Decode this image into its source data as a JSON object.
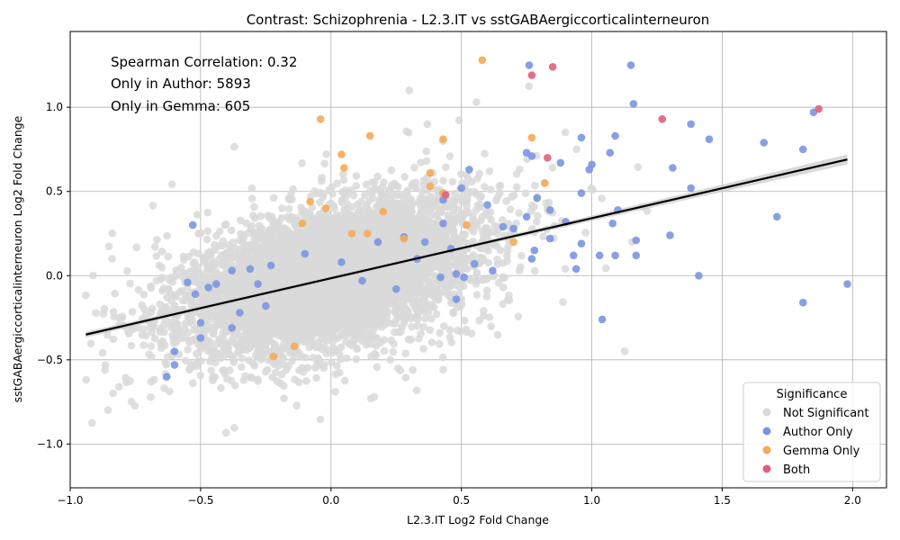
{
  "chart_data": {
    "type": "scatter",
    "title": "Contrast: Schizophrenia - L2.3.IT vs sstGABAergiccorticalinterneuron",
    "xlabel": "L2.3.IT Log2 Fold Change",
    "ylabel": "sstGABAergiccorticalinterneuron Log2 Fold Change",
    "xlim": [
      -1.0,
      2.13
    ],
    "ylim": [
      -1.26,
      1.45
    ],
    "xticks": [
      -1.0,
      -0.5,
      0.0,
      0.5,
      1.0,
      1.5,
      2.0
    ],
    "xtick_labels": [
      "−1.0",
      "−0.5",
      "0.0",
      "0.5",
      "1.0",
      "1.5",
      "2.0"
    ],
    "yticks": [
      -1.0,
      -0.5,
      0.0,
      0.5,
      1.0
    ],
    "ytick_labels": [
      "−1.0",
      "−0.5",
      "0.0",
      "0.5",
      "1.0"
    ],
    "grid": true,
    "annotations": [
      "Spearman Correlation: 0.32",
      "Only in Author: 5893",
      "Only in Gemma: 605"
    ],
    "legend": {
      "title": "Significance",
      "location": "lower-right",
      "entries": [
        {
          "label": "Not Significant",
          "color": "#d9d9d9"
        },
        {
          "label": "Author Only",
          "color": "#7b96e0"
        },
        {
          "label": "Gemma Only",
          "color": "#f5aa55"
        },
        {
          "label": "Both",
          "color": "#e0607a"
        }
      ]
    },
    "regression": {
      "x": [
        -0.94,
        1.98
      ],
      "y": [
        -0.35,
        0.69
      ],
      "color": "#000000",
      "band_color": "#cccccc"
    },
    "series": [
      {
        "name": "Author Only",
        "color": "#7b96e0",
        "points": [
          [
            0.76,
            1.25
          ],
          [
            1.15,
            1.25
          ],
          [
            1.16,
            1.02
          ],
          [
            0.75,
            0.73
          ],
          [
            0.77,
            0.71
          ],
          [
            0.96,
            0.82
          ],
          [
            1.09,
            0.83
          ],
          [
            1.38,
            0.9
          ],
          [
            1.45,
            0.81
          ],
          [
            1.66,
            0.79
          ],
          [
            1.81,
            0.75
          ],
          [
            1.85,
            0.97
          ],
          [
            0.88,
            0.67
          ],
          [
            0.99,
            0.63
          ],
          [
            1.0,
            0.66
          ],
          [
            1.07,
            0.73
          ],
          [
            1.31,
            0.64
          ],
          [
            1.38,
            0.52
          ],
          [
            0.96,
            0.49
          ],
          [
            0.79,
            0.46
          ],
          [
            0.84,
            0.39
          ],
          [
            0.75,
            0.35
          ],
          [
            0.9,
            0.32
          ],
          [
            1.1,
            0.39
          ],
          [
            1.71,
            0.35
          ],
          [
            1.08,
            0.31
          ],
          [
            0.84,
            0.22
          ],
          [
            0.96,
            0.19
          ],
          [
            1.17,
            0.21
          ],
          [
            1.3,
            0.24
          ],
          [
            0.78,
            0.15
          ],
          [
            0.77,
            0.1
          ],
          [
            0.93,
            0.12
          ],
          [
            1.03,
            0.12
          ],
          [
            1.09,
            0.12
          ],
          [
            1.17,
            0.12
          ],
          [
            0.94,
            0.04
          ],
          [
            1.41,
            0.0
          ],
          [
            1.98,
            -0.05
          ],
          [
            1.81,
            -0.16
          ],
          [
            1.04,
            -0.26
          ],
          [
            0.53,
            0.63
          ],
          [
            0.5,
            0.52
          ],
          [
            0.43,
            0.45
          ],
          [
            0.66,
            0.29
          ],
          [
            0.46,
            0.16
          ],
          [
            0.55,
            0.07
          ],
          [
            0.62,
            0.03
          ],
          [
            0.48,
            0.01
          ],
          [
            0.51,
            -0.01
          ],
          [
            0.42,
            -0.01
          ],
          [
            0.48,
            -0.14
          ],
          [
            0.28,
            0.23
          ],
          [
            0.18,
            0.2
          ],
          [
            0.04,
            0.08
          ],
          [
            -0.1,
            0.13
          ],
          [
            -0.23,
            0.06
          ],
          [
            -0.31,
            0.04
          ],
          [
            -0.38,
            0.03
          ],
          [
            -0.47,
            -0.07
          ],
          [
            -0.52,
            -0.11
          ],
          [
            -0.55,
            -0.04
          ],
          [
            -0.28,
            -0.05
          ],
          [
            -0.25,
            -0.18
          ],
          [
            -0.35,
            -0.22
          ],
          [
            -0.5,
            -0.28
          ],
          [
            -0.38,
            -0.31
          ],
          [
            -0.5,
            -0.37
          ],
          [
            -0.6,
            -0.45
          ],
          [
            -0.6,
            -0.53
          ],
          [
            -0.63,
            -0.6
          ],
          [
            -0.53,
            0.3
          ],
          [
            -0.44,
            -0.05
          ],
          [
            0.12,
            -0.03
          ],
          [
            0.25,
            -0.08
          ],
          [
            0.33,
            0.1
          ],
          [
            0.36,
            0.2
          ],
          [
            0.43,
            0.31
          ],
          [
            0.6,
            0.42
          ],
          [
            0.7,
            0.28
          ]
        ]
      },
      {
        "name": "Gemma Only",
        "color": "#f5aa55",
        "points": [
          [
            0.58,
            1.28
          ],
          [
            -0.04,
            0.93
          ],
          [
            0.15,
            0.83
          ],
          [
            0.43,
            0.81
          ],
          [
            0.77,
            0.82
          ],
          [
            0.04,
            0.72
          ],
          [
            0.05,
            0.64
          ],
          [
            0.82,
            0.55
          ],
          [
            0.38,
            0.61
          ],
          [
            0.38,
            0.53
          ],
          [
            0.43,
            0.49
          ],
          [
            -0.08,
            0.44
          ],
          [
            -0.02,
            0.4
          ],
          [
            0.2,
            0.38
          ],
          [
            -0.11,
            0.31
          ],
          [
            0.08,
            0.25
          ],
          [
            0.14,
            0.25
          ],
          [
            0.28,
            0.22
          ],
          [
            -0.14,
            -0.42
          ],
          [
            -0.22,
            -0.48
          ],
          [
            0.52,
            0.3
          ],
          [
            0.7,
            0.2
          ]
        ]
      },
      {
        "name": "Both",
        "color": "#e0607a",
        "points": [
          [
            0.85,
            1.24
          ],
          [
            0.77,
            1.19
          ],
          [
            1.27,
            0.93
          ],
          [
            1.87,
            0.99
          ],
          [
            0.83,
            0.7
          ],
          [
            0.44,
            0.48
          ]
        ]
      }
    ],
    "background_series": {
      "name": "Not Significant",
      "color": "#d9d9d9",
      "count": 6500,
      "x_center": 0.0,
      "y_center": 0.0,
      "x_spread": 0.26,
      "y_spread": 0.21,
      "correlation": 0.45,
      "extent": {
        "x": [
          -0.95,
          1.95
        ],
        "y": [
          -1.13,
          1.32
        ]
      }
    }
  }
}
